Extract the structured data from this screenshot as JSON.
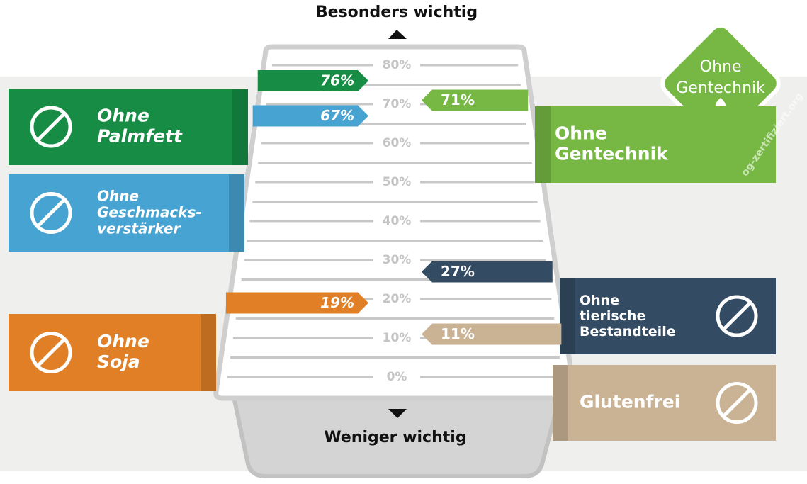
{
  "chart_data": {
    "type": "bar",
    "top_label": "Besonders wichtig",
    "bottom_label": "Weniger wichtig",
    "categories": [
      "Ohne\nPalmfett",
      "Ohne\nGeschmacks-\nverstärker",
      "Ohne\nSoja",
      "Ohne\nGentechnik",
      "Ohne\ntierische\nBestandteile",
      "Glutenfrei"
    ],
    "values": [
      76,
      67,
      19,
      71,
      27,
      11
    ],
    "value_labels": [
      "76%",
      "67%",
      "19%",
      "71%",
      "27%",
      "11%"
    ],
    "colors": [
      "#168c45",
      "#47a3d1",
      "#e07f25",
      "#76b843",
      "#344c63",
      "#c9b394"
    ],
    "ylim": [
      0,
      80
    ],
    "yticks": [
      {
        "value": 0,
        "label": "0%"
      },
      {
        "value": 10,
        "label": "10%"
      },
      {
        "value": 20,
        "label": "20%"
      },
      {
        "value": 30,
        "label": "30%"
      },
      {
        "value": 40,
        "label": "40%"
      },
      {
        "value": 50,
        "label": "50%"
      },
      {
        "value": 60,
        "label": "60%"
      },
      {
        "value": 70,
        "label": "70%"
      },
      {
        "value": 80,
        "label": "80%"
      }
    ],
    "minor_yticks": [
      5,
      15,
      25,
      35,
      45,
      55,
      65,
      75
    ],
    "seal_text": "Ohne\nGentechnik",
    "seal_url": "og-zertifiziert.org"
  }
}
